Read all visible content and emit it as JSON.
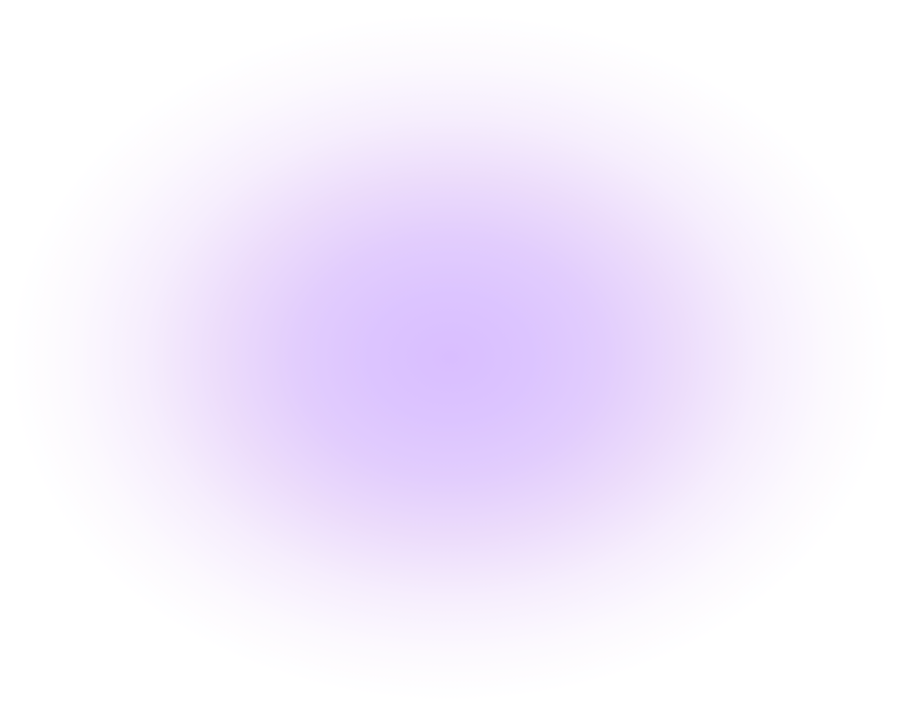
{
  "background": {
    "glow_color": "#d9beff",
    "base_color": "#ffffff"
  }
}
